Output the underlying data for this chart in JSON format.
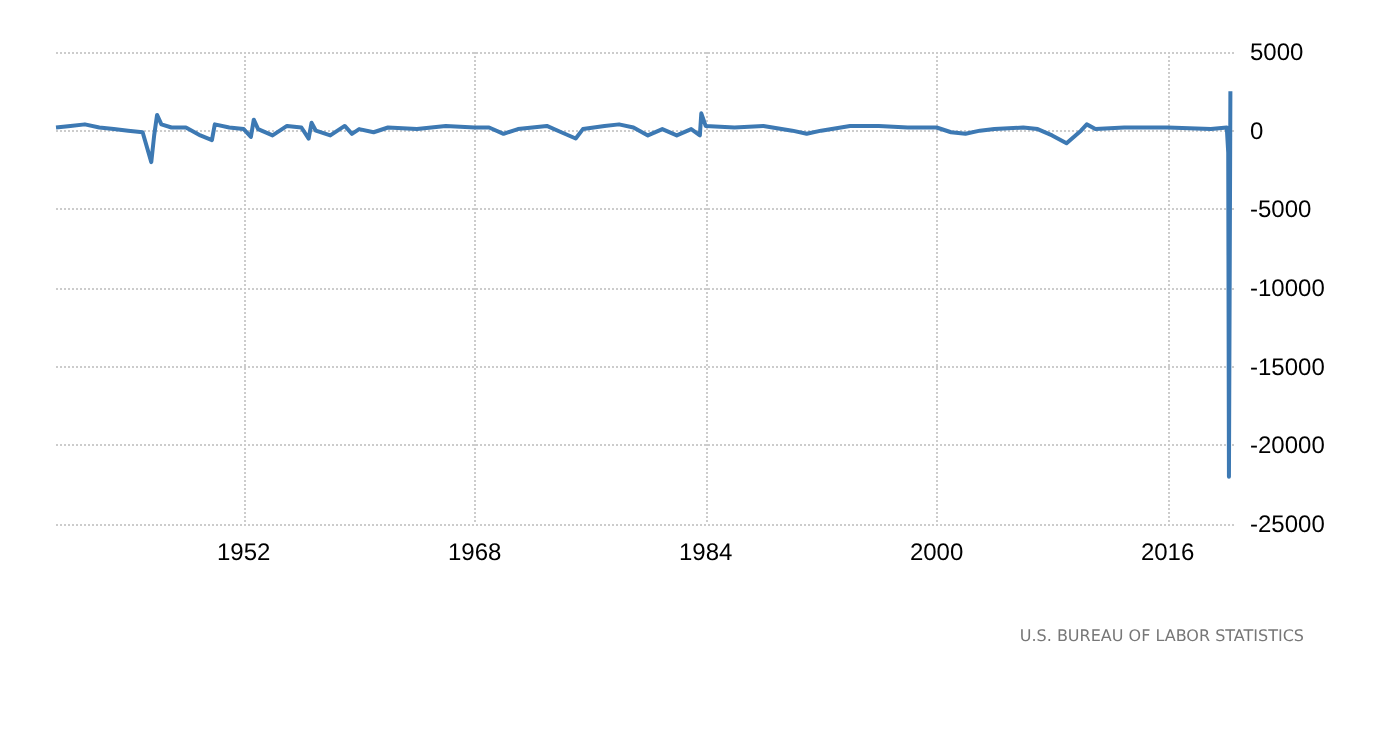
{
  "chart_data": {
    "type": "line",
    "x": [
      1939.0,
      1940,
      1941,
      1942,
      1943,
      1944,
      1945.0,
      1945.6,
      1945.8,
      1946.0,
      1946.3,
      1947,
      1948,
      1949,
      1949.8,
      1950,
      1951,
      1952,
      1952.5,
      1952.7,
      1953,
      1954,
      1955,
      1956,
      1956.5,
      1956.7,
      1957,
      1958,
      1959,
      1959.5,
      1960,
      1961,
      1962,
      1964,
      1966,
      1968,
      1969,
      1970,
      1971,
      1973,
      1974,
      1975,
      1975.5,
      1977,
      1978,
      1979,
      1980,
      1981,
      1982,
      1983,
      1983.6,
      1983.7,
      1984,
      1986,
      1988,
      1990,
      1991,
      1992,
      1994,
      1996,
      1998,
      2000,
      2001,
      2002,
      2003,
      2004,
      2006,
      2007,
      2008,
      2009.0,
      2009.5,
      2010,
      2010.4,
      2011,
      2013,
      2016,
      2019,
      2020.1,
      2020.2,
      2020.25,
      2020.35
    ],
    "series": [
      {
        "color": "#3d79b3",
        "values": [
          200,
          300,
          400,
          200,
          100,
          0,
          -100,
          -2000,
          -300,
          1000,
          400,
          200,
          200,
          -300,
          -600,
          400,
          200,
          100,
          -400,
          700,
          100,
          -300,
          300,
          200,
          -500,
          500,
          0,
          -300,
          300,
          -200,
          100,
          -100,
          200,
          100,
          300,
          200,
          200,
          -200,
          100,
          300,
          -100,
          -500,
          100,
          300,
          400,
          200,
          -300,
          100,
          -300,
          100,
          -300,
          1100,
          300,
          200,
          300,
          0,
          -200,
          0,
          300,
          300,
          200,
          200,
          -100,
          -200,
          0,
          100,
          200,
          100,
          -300,
          -800,
          -400,
          0,
          400,
          100,
          200,
          200,
          100,
          200,
          -1400,
          -22000,
          2500
        ]
      }
    ],
    "xlim": [
      1939,
      2020.6
    ],
    "xticks": [
      1952,
      1968,
      1984,
      2000,
      2016
    ],
    "ylim": [
      -25000,
      5000
    ],
    "yticks": [
      -25000,
      -20000,
      -15000,
      -10000,
      -5000,
      0,
      5000
    ],
    "grid": true,
    "line_style": "solid",
    "marker": "none",
    "annotations": [
      "U.S. BUREAU OF LABOR STATISTICS"
    ]
  }
}
